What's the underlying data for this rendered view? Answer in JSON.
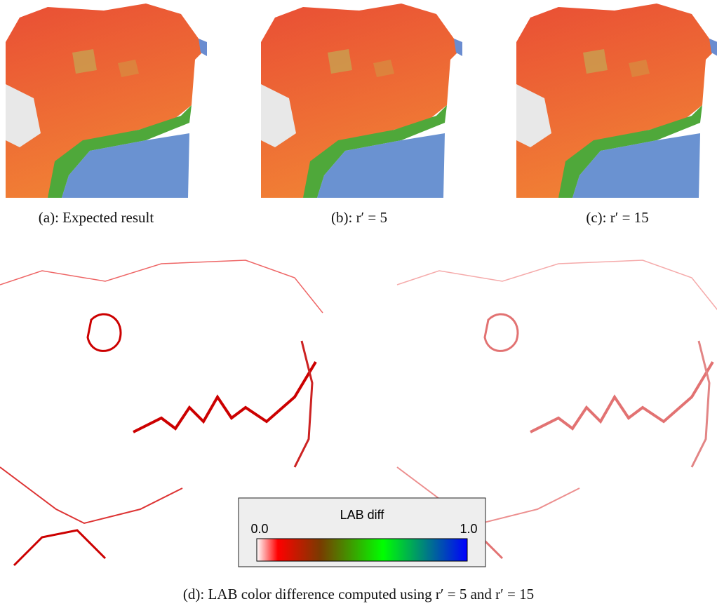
{
  "captions": {
    "a": "(a): Expected result",
    "b": "(b): r′ = 5",
    "c": "(c): r′ = 15",
    "d": "(d): LAB color difference computed using r′ = 5 and r′ = 15"
  },
  "legend": {
    "title": "LAB diff",
    "min_label": "0.0",
    "max_label": "1.0"
  }
}
